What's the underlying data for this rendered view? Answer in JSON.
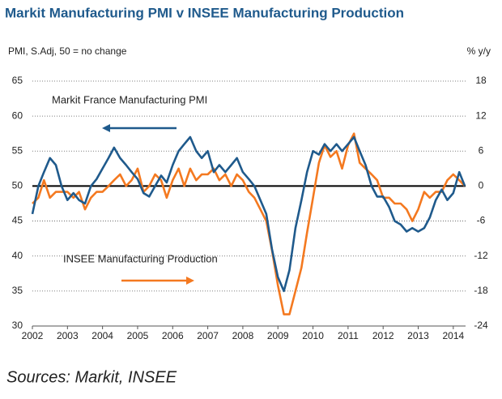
{
  "chart_data": {
    "type": "line",
    "title": "Markit Manufacturing PMI v INSEE Manufacturing Production",
    "ylabel": "PMI, S.Adj, 50 = no change",
    "y2label": "% y/y",
    "annotations": [
      "Markit France Manufacturing PMI",
      "INSEE Manufacturing Production"
    ],
    "source": "Sources: Markit, INSEE",
    "x": [
      2002.0,
      2002.17,
      2002.33,
      2002.5,
      2002.67,
      2002.83,
      2003.0,
      2003.17,
      2003.33,
      2003.5,
      2003.67,
      2003.83,
      2004.0,
      2004.17,
      2004.33,
      2004.5,
      2004.67,
      2004.83,
      2005.0,
      2005.17,
      2005.33,
      2005.5,
      2005.67,
      2005.83,
      2006.0,
      2006.17,
      2006.33,
      2006.5,
      2006.67,
      2006.83,
      2007.0,
      2007.17,
      2007.33,
      2007.5,
      2007.67,
      2007.83,
      2008.0,
      2008.17,
      2008.33,
      2008.5,
      2008.67,
      2008.83,
      2009.0,
      2009.17,
      2009.33,
      2009.5,
      2009.67,
      2009.83,
      2010.0,
      2010.17,
      2010.33,
      2010.5,
      2010.67,
      2010.83,
      2011.0,
      2011.17,
      2011.33,
      2011.5,
      2011.67,
      2011.83,
      2012.0,
      2012.17,
      2012.33,
      2012.5,
      2012.67,
      2012.83,
      2013.0,
      2013.17,
      2013.33,
      2013.5,
      2013.67,
      2013.83,
      2014.0,
      2014.17,
      2014.33
    ],
    "series": [
      {
        "name": "Markit France Manufacturing PMI",
        "color": "#1f5a8c",
        "axis": "y",
        "values": [
          46,
          50,
          52,
          54,
          53,
          50,
          48,
          49,
          48,
          47.5,
          50,
          51,
          52.5,
          54,
          55.5,
          54,
          53,
          52,
          51,
          49,
          48.5,
          50,
          51.5,
          50.5,
          53,
          55,
          56,
          57,
          55,
          54,
          55,
          52,
          53,
          52,
          53,
          54,
          52,
          51,
          50,
          48,
          46,
          41,
          37,
          35,
          38,
          44,
          48,
          52,
          55,
          54.5,
          56,
          55,
          56,
          55,
          56,
          57,
          55,
          53,
          50,
          48.5,
          48.5,
          47,
          45,
          44.5,
          43.5,
          44,
          43.5,
          44,
          45.5,
          48,
          49.5,
          48,
          49,
          52,
          50
        ]
      },
      {
        "name": "INSEE Manufacturing Production",
        "color": "#f47920",
        "axis": "y2",
        "values": [
          -3,
          -2,
          1,
          -2,
          -1,
          -1,
          -1,
          -2,
          -1,
          -4,
          -2,
          -1,
          -1,
          0,
          1,
          2,
          0,
          1,
          3,
          -1,
          0,
          2,
          1,
          -2,
          1,
          3,
          0,
          3,
          1,
          2,
          2,
          3,
          1,
          2,
          0,
          2,
          1,
          -1,
          -2,
          -4,
          -6,
          -11,
          -17,
          -22,
          -22,
          -18,
          -14,
          -8,
          -2,
          4,
          7,
          5,
          6,
          3,
          7,
          9,
          4,
          3,
          2,
          1,
          -2,
          -2,
          -3,
          -3,
          -4,
          -6,
          -4,
          -1,
          -2,
          -1,
          -1,
          1,
          2,
          1,
          0
        ]
      }
    ],
    "xlim": [
      2002,
      2014.35
    ],
    "xticks": [
      2002,
      2003,
      2004,
      2005,
      2006,
      2007,
      2008,
      2009,
      2010,
      2011,
      2012,
      2013,
      2014
    ],
    "ylim": [
      30,
      65
    ],
    "yticks": [
      30,
      35,
      40,
      45,
      50,
      55,
      60,
      65
    ],
    "y2lim": [
      -24,
      18
    ],
    "y2ticks": [
      -24,
      -18,
      -12,
      -6,
      0,
      6,
      12,
      18
    ],
    "ref_line": 50,
    "grid": true
  }
}
